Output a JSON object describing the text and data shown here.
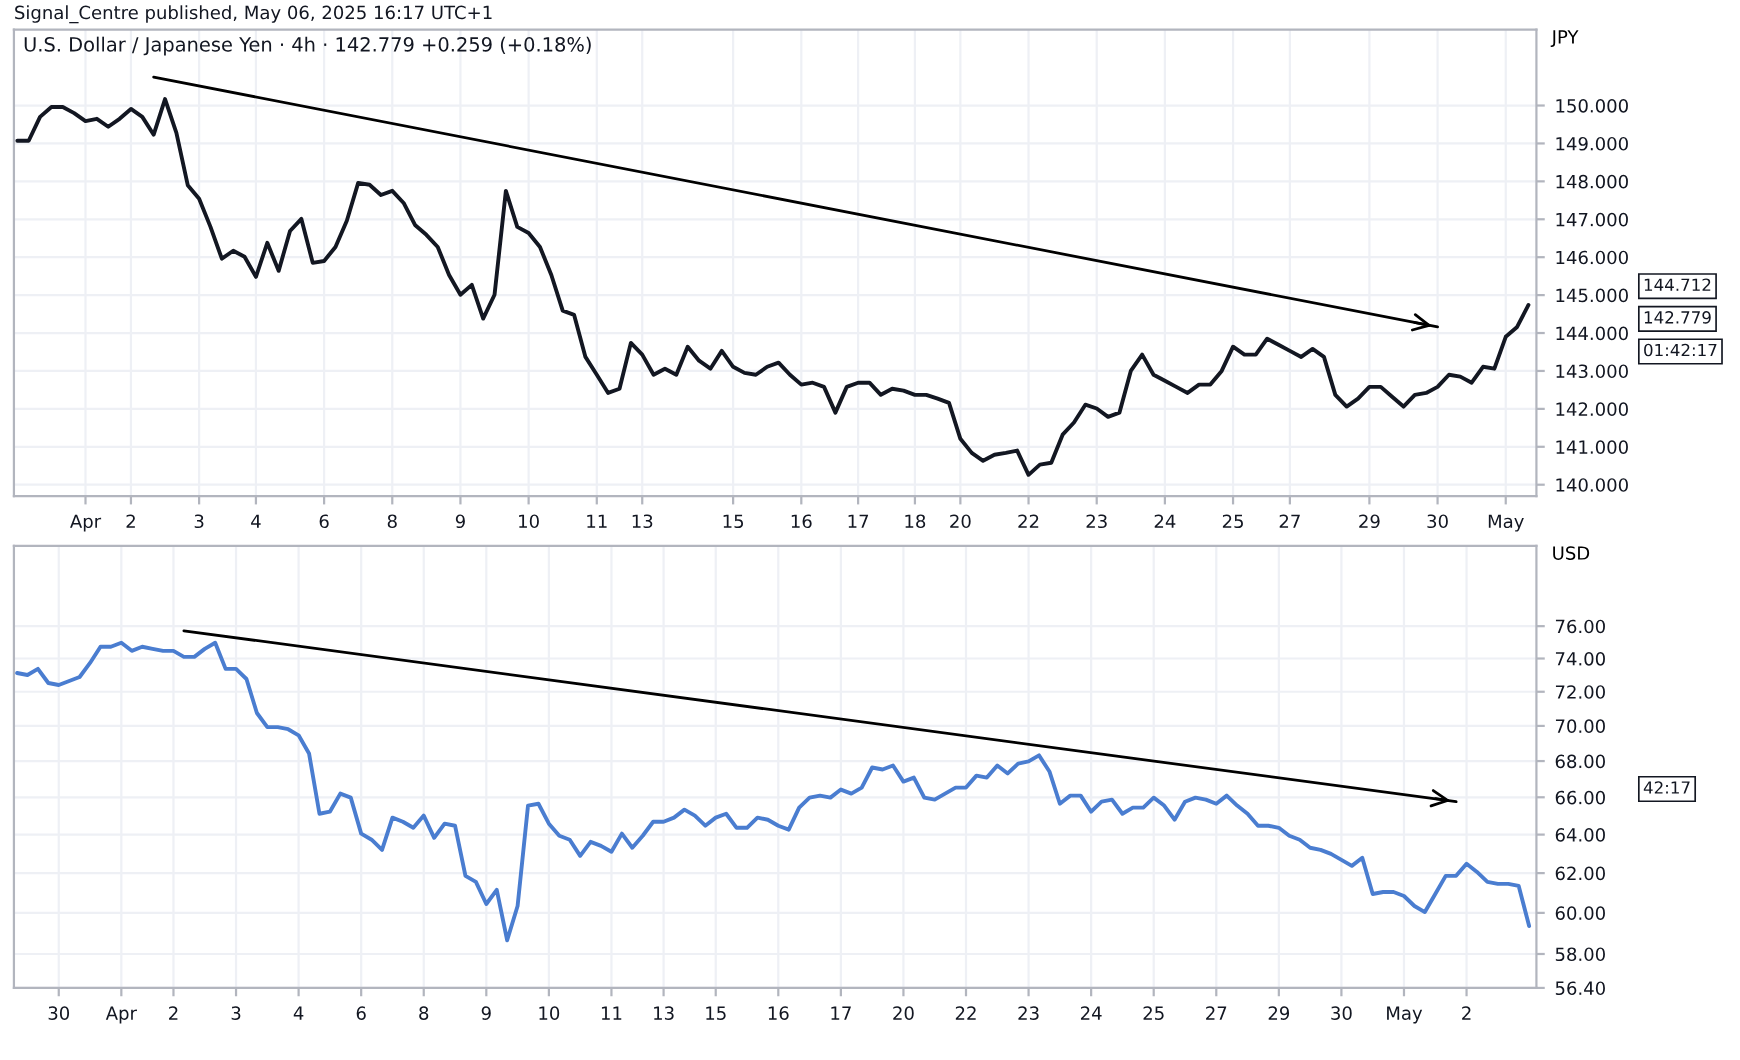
{
  "chart_data": [
    {
      "type": "line",
      "title": "U.S. Dollar / Japanese Yen · 4h · 142.779 +0.259 (+0.18%)",
      "ylabel": "JPY",
      "grid": true,
      "categories": [
        null,
        null,
        null,
        null,
        null,
        null,
        "Apr",
        null,
        null,
        null,
        "2",
        null,
        null,
        null,
        null,
        null,
        "3",
        null,
        null,
        null,
        null,
        "4",
        null,
        null,
        null,
        null,
        null,
        "6",
        null,
        null,
        null,
        null,
        null,
        "8",
        null,
        null,
        null,
        null,
        null,
        "9",
        null,
        null,
        null,
        null,
        null,
        "10",
        null,
        null,
        null,
        null,
        null,
        "11",
        null,
        null,
        null,
        "13",
        null,
        null,
        null,
        null,
        null,
        null,
        null,
        "15",
        null,
        null,
        null,
        null,
        null,
        "16",
        null,
        null,
        null,
        null,
        "17",
        null,
        null,
        null,
        null,
        "18",
        null,
        null,
        null,
        "20",
        null,
        null,
        null,
        null,
        null,
        "22",
        null,
        null,
        null,
        null,
        null,
        "23",
        null,
        null,
        null,
        null,
        null,
        "24",
        null,
        null,
        null,
        null,
        null,
        "25",
        null,
        null,
        null,
        null,
        "27",
        null,
        null,
        null,
        null,
        null,
        null,
        "29",
        null,
        null,
        null,
        null,
        null,
        "30",
        null,
        null,
        null,
        null,
        null,
        "May",
        null,
        null
      ],
      "series": [
        {
          "color": "#131722",
          "values": [
            149.07,
            149.07,
            149.7,
            149.96,
            149.96,
            149.8,
            149.59,
            149.65,
            149.44,
            149.65,
            149.91,
            149.7,
            149.23,
            150.17,
            149.28,
            147.9,
            147.54,
            146.8,
            145.96,
            146.17,
            146.01,
            145.48,
            146.38,
            145.64,
            146.69,
            147.01,
            145.85,
            145.9,
            146.27,
            146.96,
            147.96,
            147.91,
            147.64,
            147.75,
            147.43,
            146.85,
            146.59,
            146.27,
            145.53,
            145.01,
            145.27,
            144.38,
            145.01,
            147.75,
            146.8,
            146.64,
            146.27,
            145.53,
            144.59,
            144.48,
            143.37,
            142.9,
            142.42,
            142.53,
            143.74,
            143.43,
            142.9,
            143.06,
            142.9,
            143.64,
            143.27,
            143.06,
            143.53,
            143.11,
            142.95,
            142.9,
            143.11,
            143.22,
            142.9,
            142.64,
            142.69,
            142.58,
            141.9,
            142.58,
            142.69,
            142.69,
            142.37,
            142.53,
            142.48,
            142.37,
            142.37,
            142.27,
            142.16,
            141.21,
            140.84,
            140.63,
            140.79,
            140.84,
            140.9,
            140.26,
            140.53,
            140.58,
            141.32,
            141.64,
            142.11,
            142.01,
            141.79,
            141.9,
            143.0,
            143.43,
            142.9,
            142.74,
            142.58,
            142.42,
            142.64,
            142.64,
            143.0,
            143.64,
            143.43,
            143.43,
            143.85,
            143.69,
            143.53,
            143.37,
            143.58,
            143.37,
            142.37,
            142.06,
            142.27,
            142.58,
            142.58,
            142.32,
            142.06,
            142.37,
            142.42,
            142.58,
            142.9,
            142.85,
            142.69,
            143.11,
            143.06,
            143.9,
            144.16,
            144.74
          ]
        },
        {
          "color": "#000000",
          "values": [
            null,
            null,
            null,
            null,
            null,
            null,
            null,
            null,
            null,
            null,
            null,
            null,
            150.75,
            null,
            null,
            null,
            null,
            null,
            null,
            null,
            null,
            null,
            null,
            null,
            null,
            null,
            null,
            null,
            null,
            null,
            null,
            null,
            null,
            null,
            null,
            null,
            null,
            null,
            null,
            null,
            null,
            null,
            null,
            null,
            null,
            null,
            null,
            null,
            null,
            null,
            null,
            null,
            null,
            null,
            null,
            null,
            null,
            null,
            null,
            null,
            null,
            null,
            null,
            null,
            null,
            null,
            null,
            null,
            null,
            null,
            null,
            null,
            null,
            null,
            null,
            null,
            null,
            null,
            null,
            null,
            null,
            null,
            null,
            null,
            null,
            null,
            null,
            null,
            null,
            null,
            null,
            null,
            null,
            null,
            null,
            null,
            null,
            null,
            null,
            null,
            null,
            null,
            null,
            null,
            null,
            null,
            null,
            null,
            null,
            null,
            null,
            null,
            null,
            null,
            null,
            null,
            null,
            null,
            null,
            null,
            null,
            null,
            null,
            null,
            null,
            144.16,
            null,
            null,
            null,
            null,
            null,
            null,
            null,
            null
          ]
        }
      ],
      "ylim": [
        139.7,
        152.0
      ],
      "yticks": [
        {
          "value": 140,
          "label": "140.000"
        },
        {
          "value": 141,
          "label": "141.000"
        },
        {
          "value": 142,
          "label": "142.000"
        },
        {
          "value": 143,
          "label": "143.000"
        },
        {
          "value": 144,
          "label": "144.000"
        },
        {
          "value": 145,
          "label": "145.000"
        },
        {
          "value": 146,
          "label": "146.000"
        },
        {
          "value": 147,
          "label": "147.000"
        },
        {
          "value": 148,
          "label": "148.000"
        },
        {
          "value": 149,
          "label": "149.000"
        },
        {
          "value": 150,
          "label": "150.000"
        }
      ],
      "subtitle": "Signal_Centre published, May 06, 2025 16:17 UTC+1",
      "annotations": [
        "144.712",
        "142.779",
        "01:42:17"
      ]
    },
    {
      "type": "line",
      "ylabel": "USD",
      "grid": true,
      "log": true,
      "categories": [
        null,
        null,
        null,
        null,
        "30",
        null,
        null,
        null,
        null,
        null,
        "Apr",
        null,
        null,
        null,
        null,
        "2",
        null,
        null,
        null,
        null,
        null,
        "3",
        null,
        null,
        null,
        null,
        null,
        "4",
        null,
        null,
        null,
        null,
        null,
        "6",
        null,
        null,
        null,
        null,
        null,
        "8",
        null,
        null,
        null,
        null,
        null,
        "9",
        null,
        null,
        null,
        null,
        null,
        "10",
        null,
        null,
        null,
        null,
        null,
        "11",
        null,
        null,
        null,
        null,
        "13",
        null,
        null,
        null,
        null,
        "15",
        null,
        null,
        null,
        null,
        null,
        "16",
        null,
        null,
        null,
        null,
        null,
        "17",
        null,
        null,
        null,
        null,
        null,
        "20",
        null,
        null,
        null,
        null,
        null,
        "22",
        null,
        null,
        null,
        null,
        null,
        "23",
        null,
        null,
        null,
        null,
        null,
        "24",
        null,
        null,
        null,
        null,
        null,
        "25",
        null,
        null,
        null,
        null,
        null,
        "27",
        null,
        null,
        null,
        null,
        null,
        "29",
        null,
        null,
        null,
        null,
        null,
        "30",
        null,
        null,
        null,
        null,
        null,
        "May",
        null,
        null,
        null,
        null,
        null,
        "2",
        null,
        null,
        null,
        null,
        null,
        null
      ],
      "series": [
        {
          "color": "#4a7dd0",
          "values": [
            73.12,
            73.0,
            73.37,
            72.52,
            72.4,
            72.64,
            72.88,
            73.73,
            74.72,
            74.72,
            74.97,
            74.47,
            74.72,
            74.59,
            74.47,
            74.47,
            74.1,
            74.1,
            74.59,
            74.97,
            73.37,
            73.37,
            72.76,
            70.75,
            69.93,
            69.93,
            69.81,
            69.46,
            68.43,
            65.11,
            65.22,
            66.2,
            65.98,
            64.05,
            63.73,
            63.2,
            64.9,
            64.68,
            64.36,
            65.01,
            63.83,
            64.58,
            64.47,
            61.86,
            61.55,
            60.44,
            61.15,
            58.66,
            60.34,
            65.55,
            65.65,
            64.58,
            63.94,
            63.73,
            62.89,
            63.62,
            63.41,
            63.1,
            64.05,
            63.31,
            63.94,
            64.68,
            64.68,
            64.9,
            65.33,
            65.01,
            64.47,
            64.9,
            65.11,
            64.36,
            64.36,
            64.9,
            64.79,
            64.47,
            64.26,
            65.44,
            65.98,
            66.09,
            65.98,
            66.42,
            66.2,
            66.53,
            67.64,
            67.53,
            67.75,
            66.86,
            67.08,
            65.98,
            65.87,
            66.2,
            66.53,
            66.53,
            67.19,
            67.08,
            67.75,
            67.31,
            67.86,
            67.98,
            68.32,
            67.42,
            65.65,
            66.09,
            66.09,
            65.22,
            65.76,
            65.87,
            65.11,
            65.44,
            65.44,
            65.98,
            65.55,
            64.79,
            65.76,
            65.98,
            65.87,
            65.65,
            66.09,
            65.55,
            65.11,
            64.47,
            64.47,
            64.36,
            63.94,
            63.73,
            63.31,
            63.2,
            62.99,
            62.68,
            62.37,
            62.79,
            60.94,
            61.04,
            61.04,
            60.84,
            60.34,
            60.04,
            60.94,
            61.86,
            61.86,
            62.48,
            62.06,
            61.55,
            61.45,
            61.45,
            61.35,
            59.35
          ]
        },
        {
          "color": "#000000",
          "values": [
            null,
            null,
            null,
            null,
            null,
            null,
            null,
            null,
            null,
            null,
            null,
            null,
            null,
            null,
            null,
            null,
            75.71,
            null,
            null,
            null,
            null,
            null,
            null,
            null,
            null,
            null,
            null,
            null,
            null,
            null,
            null,
            null,
            null,
            null,
            null,
            null,
            null,
            null,
            null,
            null,
            null,
            null,
            null,
            null,
            null,
            null,
            null,
            null,
            null,
            null,
            null,
            null,
            null,
            null,
            null,
            null,
            null,
            null,
            null,
            null,
            null,
            null,
            null,
            null,
            null,
            null,
            null,
            null,
            null,
            null,
            null,
            null,
            null,
            null,
            null,
            null,
            null,
            null,
            null,
            null,
            null,
            null,
            null,
            null,
            null,
            null,
            null,
            null,
            null,
            null,
            null,
            null,
            null,
            null,
            null,
            null,
            null,
            null,
            null,
            null,
            null,
            null,
            null,
            null,
            null,
            null,
            null,
            null,
            null,
            null,
            null,
            null,
            null,
            null,
            null,
            null,
            null,
            null,
            null,
            null,
            null,
            null,
            null,
            null,
            null,
            null,
            null,
            null,
            null,
            null,
            null,
            null,
            null,
            null,
            null,
            null,
            null,
            null,
            65.76,
            null,
            null,
            null,
            null,
            null,
            null,
            null
          ]
        }
      ],
      "ylim": [
        56.4,
        81.2
      ],
      "yticks": [
        {
          "value": 56.4,
          "label": "56.40"
        },
        {
          "value": 58,
          "label": "58.00"
        },
        {
          "value": 60,
          "label": "60.00"
        },
        {
          "value": 62,
          "label": "62.00"
        },
        {
          "value": 64,
          "label": "64.00"
        },
        {
          "value": 66,
          "label": "66.00"
        },
        {
          "value": 68,
          "label": "68.00"
        },
        {
          "value": 70,
          "label": "70.00"
        },
        {
          "value": 72,
          "label": "72.00"
        },
        {
          "value": 74,
          "label": "74.00"
        },
        {
          "value": 76,
          "label": "76.00"
        }
      ],
      "annotations": [
        "42:17"
      ]
    }
  ]
}
